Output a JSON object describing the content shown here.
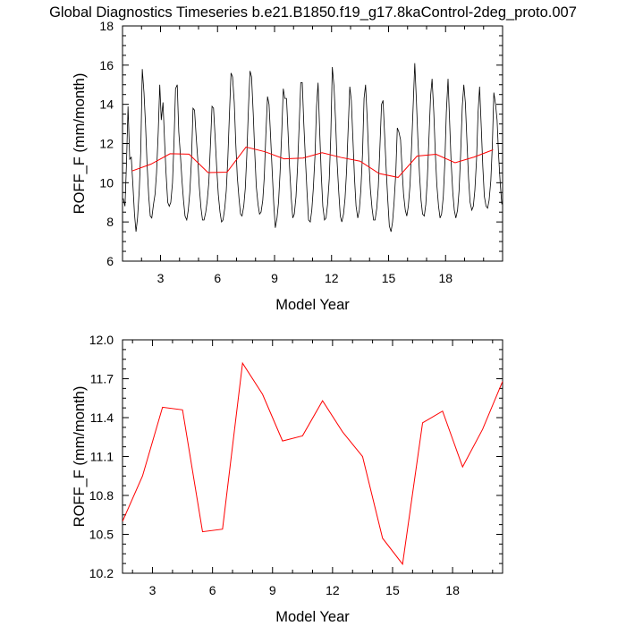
{
  "title": "Global Diagnostics Timeseries b.e21.B1850.f19_g17.8kaControl-2deg_proto.007",
  "colors": {
    "monthly": "#000000",
    "annual": "#ff0000",
    "axis": "#000000"
  },
  "chart_data": [
    {
      "type": "line",
      "panel": "top",
      "xlabel": "Model Year",
      "ylabel": "ROFF_F (mm/month)",
      "xlim": [
        1,
        21
      ],
      "ylim": [
        6,
        18
      ],
      "xticks": [
        3,
        6,
        9,
        12,
        15,
        18
      ],
      "xtick_labels": [
        "3",
        "6",
        "9",
        "12",
        "15",
        "18"
      ],
      "yticks": [
        6,
        8,
        10,
        12,
        14,
        16,
        18
      ],
      "ytick_labels": [
        "6",
        "8",
        "10",
        "12",
        "14",
        "16",
        "18"
      ],
      "series": [
        {
          "color": "#000000",
          "x": [
            1.04,
            1.13,
            1.21,
            1.29,
            1.38,
            1.46,
            1.54,
            1.63,
            1.71,
            1.79,
            1.88,
            1.96,
            2.04,
            2.13,
            2.21,
            2.29,
            2.38,
            2.46,
            2.54,
            2.63,
            2.71,
            2.79,
            2.88,
            2.96,
            3.04,
            3.13,
            3.21,
            3.29,
            3.38,
            3.46,
            3.54,
            3.63,
            3.71,
            3.79,
            3.88,
            3.96,
            4.04,
            4.13,
            4.21,
            4.29,
            4.38,
            4.46,
            4.54,
            4.63,
            4.71,
            4.79,
            4.88,
            4.96,
            5.04,
            5.13,
            5.21,
            5.29,
            5.38,
            5.46,
            5.54,
            5.63,
            5.71,
            5.79,
            5.88,
            5.96,
            6.04,
            6.13,
            6.21,
            6.29,
            6.38,
            6.46,
            6.54,
            6.63,
            6.71,
            6.79,
            6.88,
            6.96,
            7.04,
            7.13,
            7.21,
            7.29,
            7.38,
            7.46,
            7.54,
            7.63,
            7.71,
            7.79,
            7.88,
            7.96,
            8.04,
            8.13,
            8.21,
            8.29,
            8.38,
            8.46,
            8.54,
            8.63,
            8.71,
            8.79,
            8.88,
            8.96,
            9.04,
            9.13,
            9.21,
            9.29,
            9.38,
            9.46,
            9.54,
            9.63,
            9.71,
            9.79,
            9.88,
            9.96,
            10.04,
            10.13,
            10.21,
            10.29,
            10.38,
            10.46,
            10.54,
            10.63,
            10.71,
            10.79,
            10.88,
            10.96,
            11.04,
            11.13,
            11.21,
            11.29,
            11.38,
            11.46,
            11.54,
            11.63,
            11.71,
            11.79,
            11.88,
            11.96,
            12.04,
            12.13,
            12.21,
            12.29,
            12.38,
            12.46,
            12.54,
            12.63,
            12.71,
            12.79,
            12.88,
            12.96,
            13.04,
            13.13,
            13.21,
            13.29,
            13.38,
            13.46,
            13.54,
            13.63,
            13.71,
            13.79,
            13.88,
            13.96,
            14.04,
            14.13,
            14.21,
            14.29,
            14.38,
            14.46,
            14.54,
            14.63,
            14.71,
            14.79,
            14.88,
            14.96,
            15.04,
            15.13,
            15.21,
            15.29,
            15.38,
            15.46,
            15.54,
            15.63,
            15.71,
            15.79,
            15.88,
            15.96,
            16.04,
            16.13,
            16.21,
            16.29,
            16.38,
            16.46,
            16.54,
            16.63,
            16.71,
            16.79,
            16.88,
            16.96,
            17.04,
            17.13,
            17.21,
            17.29,
            17.38,
            17.46,
            17.54,
            17.63,
            17.71,
            17.79,
            17.88,
            17.96,
            18.04,
            18.13,
            18.21,
            18.29,
            18.38,
            18.46,
            18.54,
            18.63,
            18.71,
            18.79,
            18.88,
            18.96,
            19.04,
            19.13,
            19.21,
            19.29,
            19.38,
            19.46,
            19.54,
            19.63,
            19.71,
            19.79,
            19.88,
            19.96,
            20.04,
            20.13,
            20.21,
            20.29,
            20.38,
            20.46,
            20.54,
            20.63,
            20.71,
            20.79,
            20.88,
            20.96
          ],
          "y": [
            9.2,
            8.8,
            11.0,
            13.9,
            11.2,
            11.3,
            10.0,
            8.4,
            7.5,
            8.2,
            9.6,
            11.6,
            15.8,
            14.6,
            13.0,
            11.0,
            9.3,
            8.3,
            8.2,
            8.9,
            9.4,
            10.5,
            12.6,
            15.0,
            13.2,
            14.1,
            12.2,
            10.5,
            9.0,
            8.8,
            9.0,
            10.0,
            12.1,
            14.8,
            15.0,
            12.6,
            11.5,
            10.1,
            9.1,
            8.3,
            8.1,
            8.6,
            9.5,
            11.2,
            13.8,
            13.7,
            12.3,
            11.2,
            9.8,
            8.7,
            8.1,
            8.1,
            8.5,
            9.1,
            10.0,
            12.0,
            13.9,
            13.8,
            12.2,
            10.7,
            9.4,
            8.5,
            8.0,
            8.1,
            8.7,
            9.6,
            11.2,
            13.6,
            15.6,
            15.4,
            14.1,
            12.0,
            10.3,
            9.2,
            8.4,
            8.3,
            8.8,
            9.7,
            11.4,
            13.9,
            15.7,
            15.4,
            13.5,
            11.5,
            9.8,
            8.9,
            8.4,
            8.5,
            9.1,
            10.3,
            12.4,
            14.4,
            14.0,
            12.4,
            10.5,
            8.9,
            7.7,
            8.2,
            9.0,
            10.5,
            12.6,
            14.8,
            14.3,
            14.3,
            12.6,
            10.8,
            9.2,
            8.2,
            8.4,
            9.3,
            10.8,
            12.8,
            15.1,
            15.1,
            13.0,
            11.1,
            9.5,
            8.1,
            8.0,
            8.6,
            9.7,
            11.4,
            13.9,
            15.1,
            12.5,
            10.4,
            8.8,
            8.1,
            8.2,
            8.9,
            10.2,
            12.4,
            15.9,
            14.9,
            13.2,
            11.1,
            9.5,
            8.3,
            8.0,
            8.4,
            9.2,
            10.6,
            12.9,
            14.9,
            14.2,
            12.1,
            10.2,
            8.8,
            8.2,
            8.6,
            9.6,
            11.5,
            14.3,
            15.0,
            13.2,
            11.2,
            9.7,
            8.7,
            8.1,
            8.1,
            8.7,
            9.8,
            11.7,
            14.0,
            14.2,
            12.5,
            10.6,
            9.1,
            7.8,
            7.5,
            8.0,
            9.0,
            10.5,
            12.8,
            12.6,
            12.2,
            10.7,
            9.4,
            8.6,
            8.3,
            8.8,
            9.9,
            11.8,
            13.8,
            16.1,
            14.3,
            12.3,
            10.4,
            9.1,
            8.4,
            8.3,
            8.9,
            10.2,
            12.4,
            14.4,
            15.3,
            13.6,
            11.5,
            9.9,
            8.8,
            8.2,
            8.4,
            9.3,
            11.0,
            13.6,
            15.3,
            13.2,
            11.1,
            9.5,
            8.6,
            8.2,
            8.6,
            9.6,
            11.4,
            13.9,
            15.0,
            14.1,
            12.0,
            10.2,
            9.0,
            8.6,
            8.8,
            9.6,
            11.2,
            13.6,
            14.9,
            12.8,
            10.8,
            9.3,
            8.8,
            8.7,
            9.1,
            10.1,
            11.9,
            14.6,
            14.0,
            13.2,
            11.4,
            9.9,
            8.9
          ]
        },
        {
          "color": "#ff0000",
          "x": [
            1.5,
            2.5,
            3.5,
            4.5,
            5.5,
            6.5,
            7.5,
            8.5,
            9.5,
            10.5,
            11.5,
            12.5,
            13.5,
            14.5,
            15.5,
            16.5,
            17.5,
            18.5,
            19.5,
            20.5
          ],
          "y": [
            10.6,
            10.95,
            11.48,
            11.46,
            10.52,
            10.54,
            11.82,
            11.58,
            11.22,
            11.26,
            11.53,
            11.29,
            11.1,
            10.47,
            10.27,
            11.36,
            11.45,
            11.02,
            11.31,
            11.68
          ]
        }
      ]
    },
    {
      "type": "line",
      "panel": "bottom",
      "xlabel": "Model Year",
      "ylabel": "ROFF_F (mm/month)",
      "xlim": [
        1.5,
        20.5
      ],
      "ylim": [
        10.2,
        12.0
      ],
      "xticks": [
        3,
        6,
        9,
        12,
        15,
        18
      ],
      "xtick_labels": [
        "3",
        "6",
        "9",
        "12",
        "15",
        "18"
      ],
      "yticks": [
        10.2,
        10.5,
        10.8,
        11.1,
        11.4,
        11.7,
        12.0
      ],
      "ytick_labels": [
        "10.2",
        "10.5",
        "10.8",
        "11.1",
        "11.4",
        "11.7",
        "12.0"
      ],
      "series": [
        {
          "color": "#ff0000",
          "x": [
            1.5,
            2.5,
            3.5,
            4.5,
            5.5,
            6.5,
            7.5,
            8.5,
            9.5,
            10.5,
            11.5,
            12.5,
            13.5,
            14.5,
            15.5,
            16.5,
            17.5,
            18.5,
            19.5,
            20.5
          ],
          "y": [
            10.6,
            10.95,
            11.48,
            11.46,
            10.52,
            10.54,
            11.82,
            11.58,
            11.22,
            11.26,
            11.53,
            11.29,
            11.1,
            10.47,
            10.27,
            11.36,
            11.45,
            11.02,
            11.31,
            11.68
          ]
        }
      ]
    }
  ]
}
